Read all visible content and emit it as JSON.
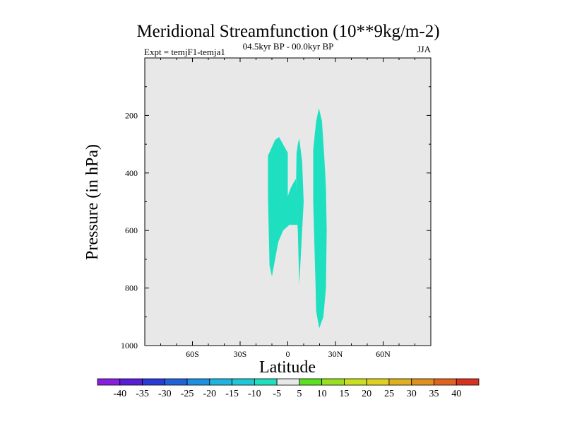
{
  "chart_data": {
    "type": "contour",
    "title": "Meridional Streamfunction (10**9kg/m-2)",
    "subtitle": "04.5kyr BP - 00.0kyr BP",
    "left_label": "Expt = temjF1-temja1",
    "right_label": "JJA",
    "xlabel": "Latitude",
    "ylabel": "Pressure (in hPa)",
    "xlim": [
      -90,
      90
    ],
    "ylim": [
      0,
      1000
    ],
    "y_inverted": true,
    "x_ticks": [
      {
        "value": -60,
        "label": "60S"
      },
      {
        "value": -30,
        "label": "30S"
      },
      {
        "value": 0,
        "label": "0"
      },
      {
        "value": 30,
        "label": "30N"
      },
      {
        "value": 60,
        "label": "60N"
      }
    ],
    "y_ticks": [
      {
        "value": 200,
        "label": "200"
      },
      {
        "value": 400,
        "label": "400"
      },
      {
        "value": 600,
        "label": "600"
      },
      {
        "value": 800,
        "label": "800"
      },
      {
        "value": 1000,
        "label": "1000"
      }
    ],
    "background_color": "#e8e8e8",
    "colorbar": {
      "labels": [
        "-40",
        "-35",
        "-30",
        "-25",
        "-20",
        "-15",
        "-10",
        "-5",
        "5",
        "10",
        "15",
        "20",
        "25",
        "30",
        "35",
        "40"
      ],
      "colors": [
        "#8a1ee0",
        "#5a1ed8",
        "#2a3cd8",
        "#1e64d8",
        "#1e90e0",
        "#1eb4e0",
        "#1ec8d8",
        "#1ee0c0",
        "#e8e8e8",
        "#5ae01e",
        "#9ae01e",
        "#c8e01e",
        "#e0d01e",
        "#e0b01e",
        "#e0901e",
        "#e0641e",
        "#d8321e"
      ]
    },
    "regions": [
      {
        "name": "region-cell-west",
        "level": "-10 to -5",
        "color": "#1ee0c0",
        "points": [
          [
            -12.5,
            340
          ],
          [
            -8,
            285
          ],
          [
            -5.5,
            275
          ],
          [
            0,
            330
          ],
          [
            0,
            480
          ],
          [
            2,
            450
          ],
          [
            5,
            420
          ],
          [
            6,
            580
          ],
          [
            4,
            580
          ],
          [
            1,
            580
          ],
          [
            -3,
            600
          ],
          [
            -6,
            640
          ],
          [
            -10,
            760
          ],
          [
            -11.5,
            720
          ],
          [
            -12.5,
            480
          ]
        ]
      },
      {
        "name": "region-cell-mid",
        "level": "-10 to -5",
        "color": "#1ee0c0",
        "points": [
          [
            5.5,
            330
          ],
          [
            6.5,
            295
          ],
          [
            7.2,
            280
          ],
          [
            9,
            360
          ],
          [
            10,
            500
          ],
          [
            9,
            600
          ],
          [
            7.2,
            790
          ],
          [
            6.3,
            600
          ],
          [
            5,
            500
          ]
        ]
      },
      {
        "name": "region-cell-east",
        "level": "-10 to -5",
        "color": "#1ee0c0",
        "points": [
          [
            16,
            320
          ],
          [
            17.8,
            220
          ],
          [
            19.6,
            175
          ],
          [
            21.5,
            220
          ],
          [
            23,
            350
          ],
          [
            24,
            450
          ],
          [
            24.5,
            600
          ],
          [
            24,
            800
          ],
          [
            22.4,
            900
          ],
          [
            19.8,
            940
          ],
          [
            17.8,
            880
          ],
          [
            17.5,
            800
          ],
          [
            16.5,
            600
          ],
          [
            16,
            500
          ]
        ]
      }
    ]
  }
}
